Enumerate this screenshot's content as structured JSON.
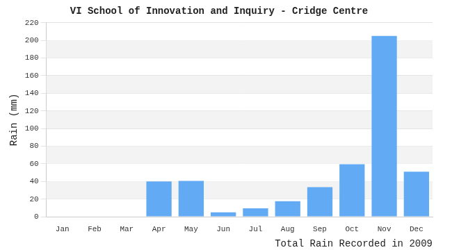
{
  "chart_data": {
    "type": "bar",
    "title": "VI School of Innovation and Inquiry - Cridge Centre",
    "x_label": "Total Rain Recorded in 2009",
    "y_label": "Rain (mm)",
    "categories": [
      "Jan",
      "Feb",
      "Mar",
      "Apr",
      "May",
      "Jun",
      "Jul",
      "Aug",
      "Sep",
      "Oct",
      "Nov",
      "Dec"
    ],
    "values": [
      0,
      0,
      0,
      40,
      40.5,
      5,
      9.5,
      17.5,
      33.5,
      59.5,
      205,
      51
    ],
    "color": "#62aaf4",
    "ylim": [
      0,
      220
    ],
    "yticks": [
      0,
      20,
      40,
      60,
      80,
      100,
      120,
      140,
      160,
      180,
      200,
      220
    ],
    "grid": true
  }
}
